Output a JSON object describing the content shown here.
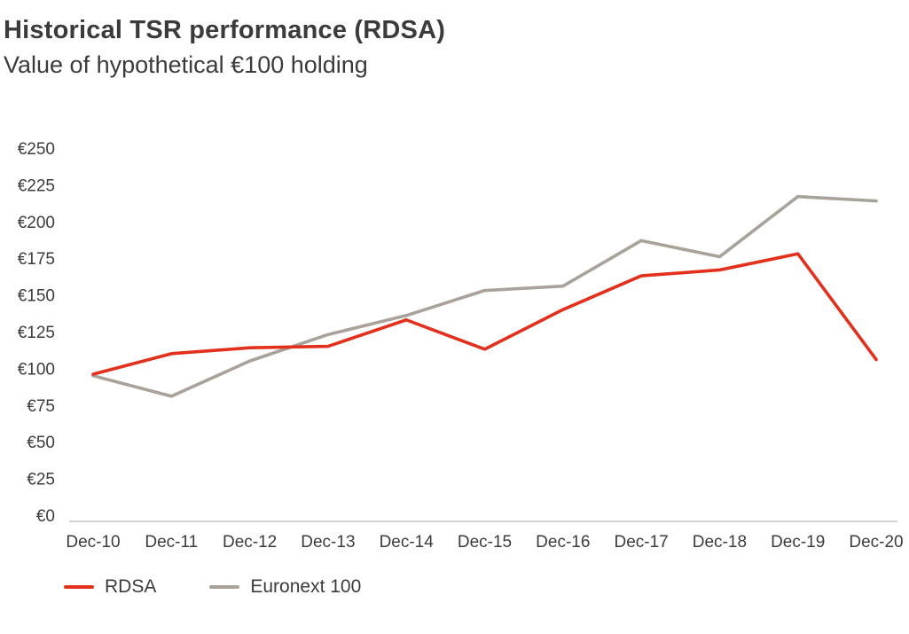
{
  "chart_data": {
    "type": "line",
    "title": "Historical TSR performance (RDSA)",
    "subtitle": "Value of hypothetical €100 holding",
    "categories": [
      "Dec-10",
      "Dec-11",
      "Dec-12",
      "Dec-13",
      "Dec-14",
      "Dec-15",
      "Dec-16",
      "Dec-17",
      "Dec-18",
      "Dec-19",
      "Dec-20"
    ],
    "series": [
      {
        "name": "RDSA",
        "color": "#e2301c",
        "values": [
          96,
          110,
          114,
          115,
          133,
          113,
          140,
          163,
          167,
          178,
          106
        ]
      },
      {
        "name": "Euronext 100",
        "color": "#a8a29a",
        "values": [
          95,
          81,
          105,
          123,
          136,
          153,
          156,
          187,
          176,
          217,
          214
        ]
      }
    ],
    "xlabel": "",
    "ylabel": "",
    "ylim": [
      0,
      250
    ],
    "ytick_step": 25,
    "ytick_prefix": "€",
    "grid": false,
    "legend_position": "bottom-left",
    "axis_color": "#c8c4bf"
  }
}
